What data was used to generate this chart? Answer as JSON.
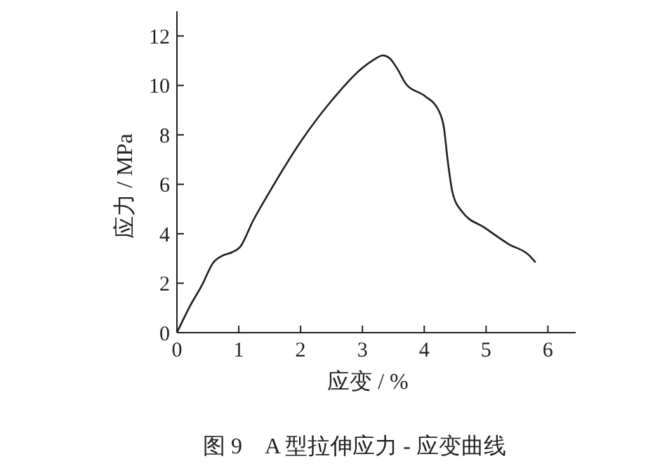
{
  "chart_data": {
    "type": "line",
    "xlabel": "应变 / %",
    "ylabel": "应力 / MPa",
    "annotations": [
      "图 9　A 型拉伸应力 - 应变曲线"
    ],
    "xlim": [
      0,
      6.45
    ],
    "ylim": [
      0,
      13
    ],
    "xticks": [
      0,
      1,
      2,
      3,
      4,
      5,
      6
    ],
    "yticks": [
      0,
      2,
      4,
      6,
      8,
      10,
      12
    ],
    "grid": false,
    "marker": "none",
    "line_style": "solid",
    "series": [
      {
        "color": "#231f20",
        "x": [
          0,
          0.21,
          0.4,
          0.59,
          0.74,
          0.89,
          1.02,
          1.23,
          1.53,
          2.02,
          2.5,
          2.95,
          3.18,
          3.33,
          3.44,
          3.56,
          3.71,
          4.01,
          4.23,
          4.32,
          4.38,
          4.46,
          4.61,
          4.98,
          5.36,
          5.7,
          5.8
        ],
        "values": [
          0,
          1.07,
          1.9,
          2.84,
          3.12,
          3.25,
          3.46,
          4.52,
          5.83,
          7.79,
          9.38,
          10.6,
          11.03,
          11.21,
          11.1,
          10.69,
          10.04,
          9.57,
          9.0,
          8.26,
          6.95,
          5.64,
          4.9,
          4.24,
          3.59,
          3.12,
          2.84
        ]
      }
    ]
  }
}
